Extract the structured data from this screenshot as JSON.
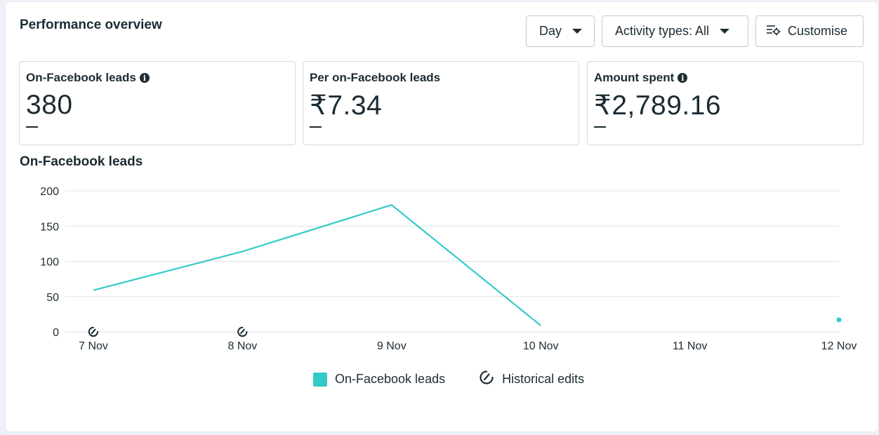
{
  "header": {
    "title": "Performance overview"
  },
  "controls": {
    "period_label": "Day",
    "activity_label": "Activity types: All",
    "customise_label": "Customise"
  },
  "cards": [
    {
      "label": "On-Facebook leads",
      "value": "380",
      "delta": "—",
      "info_icon": "info-icon"
    },
    {
      "label": "Per on-Facebook leads",
      "value": "₹7.34",
      "delta": "—"
    },
    {
      "label": "Amount spent",
      "value": "₹2,789.16",
      "delta": "—",
      "info_icon": "info-icon"
    }
  ],
  "section": {
    "title": "On-Facebook leads"
  },
  "legend": {
    "series_label": "On-Facebook leads",
    "edits_label": "Historical edits"
  },
  "colors": {
    "series": "#33cbc7",
    "grid": "#dfe2e6",
    "text": "#1c2b33"
  },
  "chart_data": {
    "type": "line",
    "categories": [
      "7 Nov",
      "8 Nov",
      "9 Nov",
      "10 Nov",
      "11 Nov",
      "12 Nov"
    ],
    "series": [
      {
        "name": "On-Facebook leads",
        "values": [
          59,
          114,
          180,
          9,
          null,
          17
        ]
      }
    ],
    "yticks": [
      0,
      50,
      100,
      150,
      200
    ],
    "ylim": [
      0,
      200
    ],
    "historical_edits_at": [
      "7 Nov",
      "8 Nov"
    ],
    "grid": true,
    "legend_position": "bottom"
  }
}
